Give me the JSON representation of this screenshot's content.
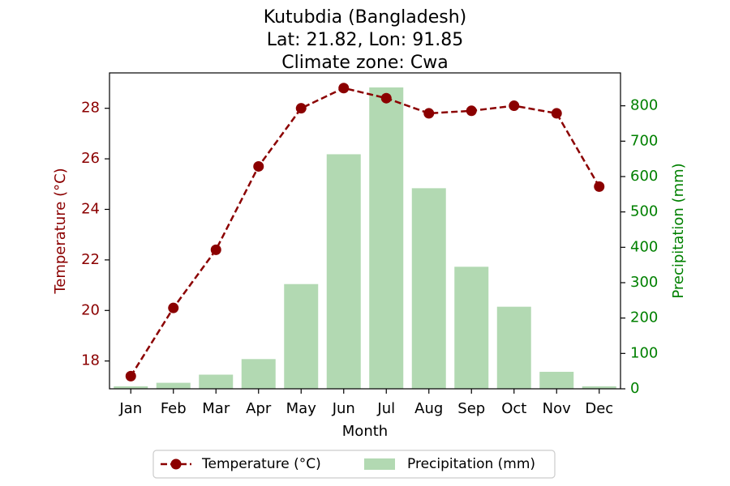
{
  "chart_data": {
    "type": "bar+line",
    "title_lines": [
      "Kutubdia (Bangladesh)",
      "Lat: 21.82, Lon: 91.85",
      "Climate zone: Cwa"
    ],
    "xlabel": "Month",
    "ylabel_left": "Temperature (°C)",
    "ylabel_right": "Precipitation (mm)",
    "categories": [
      "Jan",
      "Feb",
      "Mar",
      "Apr",
      "May",
      "Jun",
      "Jul",
      "Aug",
      "Sep",
      "Oct",
      "Nov",
      "Dec"
    ],
    "series": [
      {
        "name": "Temperature (°C)",
        "kind": "line",
        "axis": "left",
        "color": "#8b0000",
        "values": [
          17.4,
          20.1,
          22.4,
          25.7,
          28.0,
          28.8,
          28.4,
          27.8,
          27.9,
          28.1,
          27.8,
          24.9
        ]
      },
      {
        "name": "Precipitation (mm)",
        "kind": "bar",
        "axis": "right",
        "color": "#b2d9b2",
        "values": [
          7,
          17,
          40,
          84,
          296,
          663,
          852,
          567,
          345,
          232,
          48,
          7
        ]
      }
    ],
    "ylim_left": [
      16.9,
      29.4
    ],
    "ylim_right": [
      0,
      893
    ],
    "yticks_left": [
      "18",
      "20",
      "22",
      "24",
      "26",
      "28"
    ],
    "yticks_right": [
      "0",
      "100",
      "200",
      "300",
      "400",
      "500",
      "600",
      "700",
      "800"
    ],
    "legend_position": "bottom-center",
    "grid": false
  }
}
